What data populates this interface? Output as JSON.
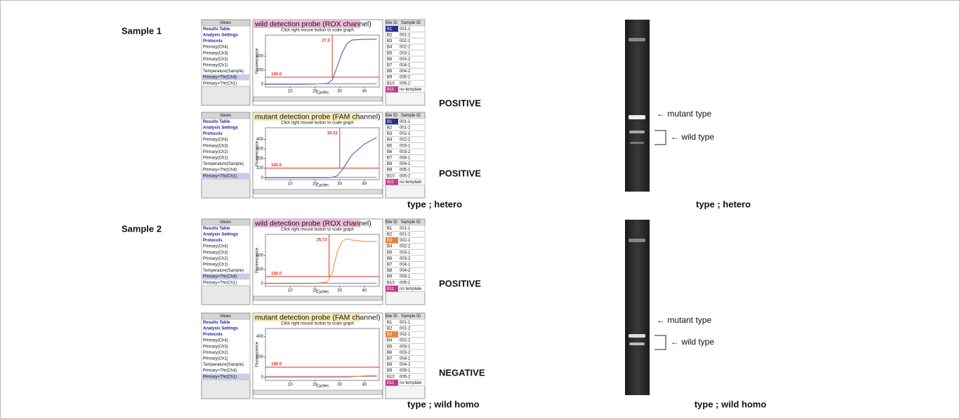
{
  "software": {
    "views_header": "Views",
    "views": [
      "Results Table",
      "Analysis Settings",
      "Protocols",
      "Primary(Ch4)",
      "Primary(Ch3)",
      "Primary(Ch2)",
      "Primary(Ch1)",
      "Temperature(Sample)",
      "Primary+Thr(Ch4)",
      "Primary+Thr(Ch1)"
    ],
    "subtitle": "Click right mouse button to scale graph",
    "x_axis_label": "Cycles",
    "y_axis_label": "Fluorescence",
    "table_headers": [
      "Site ID",
      "Sample ID"
    ],
    "site_ids": [
      "B1",
      "B2",
      "B3",
      "B4",
      "B5",
      "B6",
      "B7",
      "B8",
      "B9",
      "B10",
      "B11"
    ],
    "sample_ids": [
      "001-1",
      "001-2",
      "002-1",
      "002-2",
      "003-1",
      "003-2",
      "004-1",
      "004-2",
      "005-1",
      "005-2",
      "no template"
    ]
  },
  "samples": [
    {
      "label": "Sample 1",
      "qpcr_type": "type ; hetero",
      "gel": {
        "type": "type ; hetero",
        "mutant_label": "← mutant type",
        "wild_label": "← wild type"
      },
      "panels": [
        {
          "title": "wild detection probe (ROX channel)",
          "title_color": "#f2b8d8",
          "selected_view": 8,
          "selected_row": 0,
          "highlight_color": "#2a2f8f",
          "result": "POSITIVE",
          "chart": {
            "xlim": [
              0,
              46
            ],
            "ylim": [
              -40,
              700
            ],
            "xticks": [
              10,
              20,
              30,
              40
            ],
            "yticks": [
              0,
              200,
              400
            ],
            "threshold": {
              "value": 100,
              "label": "100.0"
            },
            "ct": {
              "value": 27,
              "label": "27.0"
            },
            "x": [
              0,
              5,
              10,
              15,
              20,
              25,
              27,
              29,
              31,
              33,
              35,
              40,
              45
            ],
            "series": [
              {
                "color": "#3a4fb0",
                "values": [
                  0,
                  0,
                  0,
                  0,
                  2,
                  10,
                  60,
                  250,
                  450,
                  580,
                  630,
                  640,
                  640
                ]
              },
              {
                "color": "#9a6ab8",
                "values": [
                  5,
                  5,
                  5,
                  5,
                  5,
                  5,
                  5,
                  5,
                  5,
                  5,
                  5,
                  5,
                  5
                ]
              }
            ]
          }
        },
        {
          "title": "mutant detection probe (FAM channel)",
          "title_color": "#f7eab0",
          "selected_view": 9,
          "selected_row": 0,
          "highlight_color": "#2a2f8f",
          "result": "POSITIVE",
          "chart": {
            "xlim": [
              0,
              46
            ],
            "ylim": [
              -20,
              520
            ],
            "xticks": [
              10,
              20,
              30,
              40
            ],
            "yticks": [
              0,
              100,
              200,
              300,
              400
            ],
            "threshold": {
              "value": 100,
              "label": "100.0"
            },
            "ct": 30.03,
            "x": [
              0,
              5,
              10,
              15,
              20,
              25,
              27,
              29,
              31,
              33,
              35,
              40,
              45
            ],
            "series": [
              {
                "color": "#3a4fb0",
                "values": [
                  0,
                  0,
                  0,
                  0,
                  0,
                  0,
                  5,
                  20,
                  80,
                  160,
                  240,
                  350,
                  420
                ]
              },
              {
                "color": "#9a6ab8",
                "values": [
                  3,
                  3,
                  3,
                  3,
                  3,
                  3,
                  3,
                  3,
                  3,
                  3,
                  3,
                  3,
                  3
                ]
              }
            ]
          }
        }
      ]
    },
    {
      "label": "Sample 2",
      "qpcr_type": "type ; wild homo",
      "gel": {
        "type": "type ; wild homo",
        "mutant_label": "← mutant type",
        "wild_label": "← wild type"
      },
      "panels": [
        {
          "title": "wild detection probe (ROX channel)",
          "title_color": "#f2b8d8",
          "selected_view": 8,
          "selected_row": 2,
          "highlight_color": "#e8853a",
          "result": "POSITIVE",
          "chart": {
            "xlim": [
              0,
              46
            ],
            "ylim": [
              -40,
              700
            ],
            "xticks": [
              10,
              20,
              30,
              40
            ],
            "yticks": [
              0,
              200,
              400
            ],
            "threshold": {
              "value": 100,
              "label": "100.0"
            },
            "ct": 25.73,
            "x": [
              0,
              5,
              10,
              15,
              20,
              25,
              27,
              29,
              31,
              33,
              35,
              40,
              45
            ],
            "series": [
              {
                "color": "#e8853a",
                "values": [
                  0,
                  0,
                  0,
                  0,
                  2,
                  20,
                  150,
                  450,
                  600,
                  640,
                  620,
                  600,
                  600
                ]
              },
              {
                "color": "#9a6ab8",
                "values": [
                  5,
                  5,
                  5,
                  5,
                  5,
                  5,
                  5,
                  5,
                  5,
                  5,
                  5,
                  5,
                  5
                ]
              }
            ]
          }
        },
        {
          "title": "mutant detection probe (FAM channel)",
          "title_color": "#f7eab0",
          "selected_view": 9,
          "selected_row": 2,
          "highlight_color": "#e8853a",
          "result": "NEGATIVE",
          "chart": {
            "xlim": [
              0,
              46
            ],
            "ylim": [
              -30,
              480
            ],
            "xticks": [
              10,
              20,
              30,
              40
            ],
            "yticks": [
              0,
              200,
              400
            ],
            "threshold": {
              "value": 100,
              "label": "100.0"
            },
            "x": [
              0,
              5,
              10,
              15,
              20,
              25,
              27,
              29,
              31,
              33,
              35,
              40,
              45
            ],
            "series": [
              {
                "color": "#9a6ab8",
                "values": [
                  10,
                  10,
                  10,
                  10,
                  10,
                  10,
                  10,
                  10,
                  10,
                  10,
                  10,
                  10,
                  10
                ]
              },
              {
                "color": "#e8853a",
                "values": [
                  0,
                  0,
                  0,
                  0,
                  0,
                  0,
                  0,
                  0,
                  0,
                  0,
                  5,
                  15,
                  20
                ]
              }
            ]
          }
        }
      ]
    }
  ]
}
